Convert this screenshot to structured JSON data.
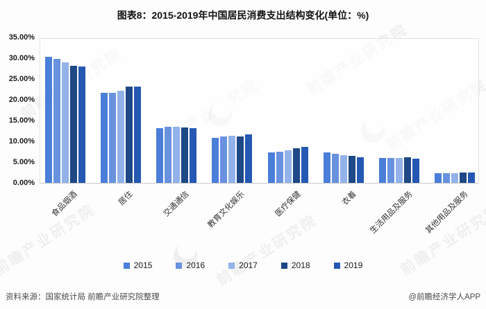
{
  "page": {
    "title": "图表8：2015-2019年中国居民消费支出结构变化(单位：%)",
    "source_note": "资料来源：国家统计局 前瞻产业研究院整理",
    "credit": "@前瞻经济学人APP",
    "watermark_text": "前瞻产业研究院"
  },
  "chart_data": {
    "type": "bar",
    "title": "图表8：2015-2019年中国居民消费支出结构变化(单位：%)",
    "unit": "%",
    "categories": [
      "食品烟酒",
      "居住",
      "交通通信",
      "教育文化娱乐",
      "医疗保健",
      "衣着",
      "生活用品及服务",
      "其他用品及服务"
    ],
    "series": [
      {
        "name": "2015",
        "color": "#4A7ED9",
        "values": [
          30.6,
          21.8,
          13.3,
          11.0,
          7.4,
          7.4,
          6.1,
          2.4
        ]
      },
      {
        "name": "2016",
        "color": "#6892DF",
        "values": [
          30.1,
          21.9,
          13.7,
          11.2,
          7.6,
          7.0,
          6.0,
          2.4
        ]
      },
      {
        "name": "2017",
        "color": "#93B2EA",
        "values": [
          29.3,
          22.4,
          13.6,
          11.4,
          7.9,
          6.8,
          6.1,
          2.4
        ]
      },
      {
        "name": "2018",
        "color": "#1E4886",
        "values": [
          28.4,
          23.4,
          13.5,
          11.2,
          8.5,
          6.5,
          6.2,
          2.5
        ]
      },
      {
        "name": "2019",
        "color": "#2458B3",
        "values": [
          28.2,
          23.4,
          13.3,
          11.7,
          8.8,
          6.2,
          5.9,
          2.5
        ]
      }
    ],
    "ylim": [
      0,
      35
    ],
    "ytick_labels": [
      "35.00%",
      "30.00%",
      "25.00%",
      "20.00%",
      "15.00%",
      "10.00%",
      "5.00%",
      "0.00%"
    ],
    "grid": false,
    "legend_position": "bottom"
  }
}
